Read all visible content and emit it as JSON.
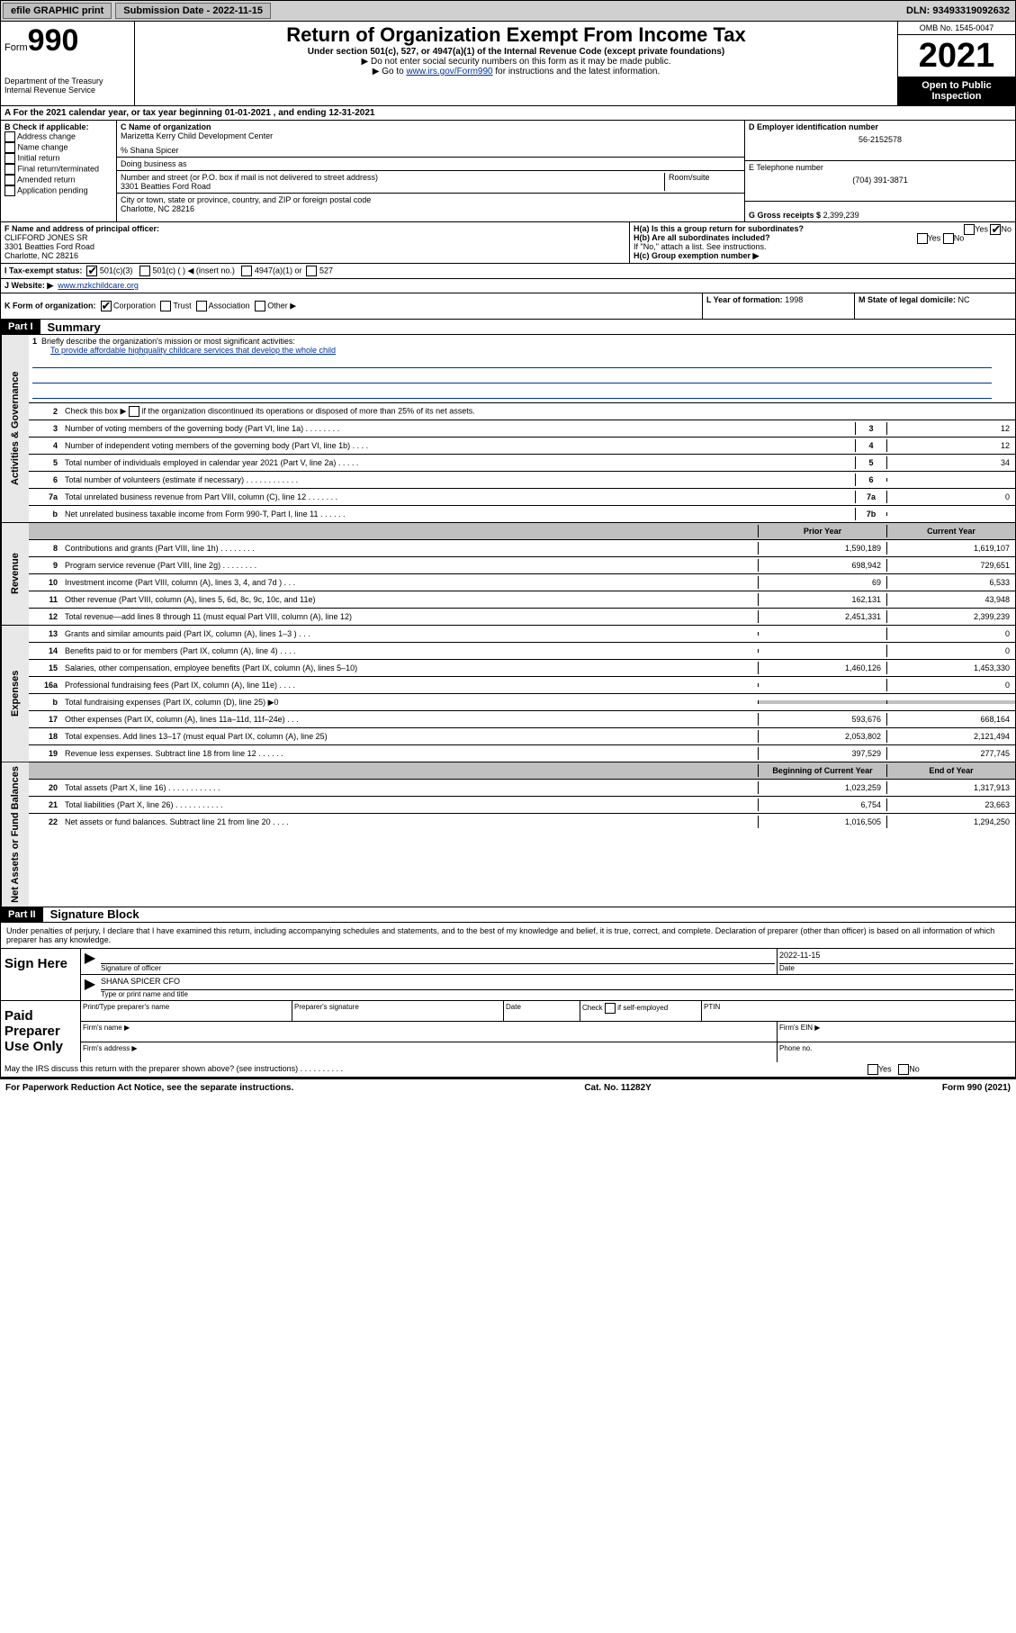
{
  "topbar": {
    "efile": "efile GRAPHIC print",
    "sub_label": "Submission Date - 2022-11-15",
    "dln": "DLN: 93493319092632"
  },
  "header": {
    "form_label": "Form",
    "form_num": "990",
    "dept": "Department of the Treasury",
    "irs": "Internal Revenue Service",
    "title": "Return of Organization Exempt From Income Tax",
    "sub1": "Under section 501(c), 527, or 4947(a)(1) of the Internal Revenue Code (except private foundations)",
    "sub2": "▶ Do not enter social security numbers on this form as it may be made public.",
    "sub3_pre": "▶ Go to ",
    "sub3_link": "www.irs.gov/Form990",
    "sub3_post": " for instructions and the latest information.",
    "omb": "OMB No. 1545-0047",
    "year": "2021",
    "inspect": "Open to Public Inspection"
  },
  "period": {
    "a": "A For the 2021 calendar year, or tax year beginning 01-01-2021   , and ending 12-31-2021"
  },
  "box_b": {
    "title": "B Check if applicable:",
    "items": [
      "Address change",
      "Name change",
      "Initial return",
      "Final return/terminated",
      "Amended return",
      "Application pending"
    ]
  },
  "box_c": {
    "label": "C Name of organization",
    "org": "Marizetta Kerry Child Development Center",
    "care": "% Shana Spicer",
    "dba_label": "Doing business as",
    "street_label": "Number and street (or P.O. box if mail is not delivered to street address)",
    "room_label": "Room/suite",
    "street": "3301 Beatties Ford Road",
    "city_label": "City or town, state or province, country, and ZIP or foreign postal code",
    "city": "Charlotte, NC  28216"
  },
  "box_d": {
    "label": "D Employer identification number",
    "ein": "56-2152578"
  },
  "box_e": {
    "label": "E Telephone number",
    "phone": "(704) 391-3871"
  },
  "box_g": {
    "label": "G Gross receipts $",
    "amount": "2,399,239"
  },
  "box_f": {
    "label": "F Name and address of principal officer:",
    "name": "CLIFFORD JONES SR",
    "addr1": "3301 Beatties Ford Road",
    "addr2": "Charlotte, NC  28216"
  },
  "box_h": {
    "ha": "H(a)  Is this a group return for subordinates?",
    "hb": "H(b)  Are all subordinates included?",
    "hb_note": "If \"No,\" attach a list. See instructions.",
    "hc": "H(c)  Group exemption number ▶",
    "yes": "Yes",
    "no": "No"
  },
  "box_i": {
    "label": "I   Tax-exempt status:",
    "c3": "501(c)(3)",
    "c": "501(c) (  ) ◀ (insert no.)",
    "a1": "4947(a)(1) or",
    "s527": "527"
  },
  "box_j": {
    "label": "J   Website: ▶",
    "url": "www.mzkchildcare.org"
  },
  "box_k": {
    "label": "K Form of organization:",
    "corp": "Corporation",
    "trust": "Trust",
    "assoc": "Association",
    "other": "Other ▶"
  },
  "box_l": {
    "label": "L Year of formation:",
    "val": "1998"
  },
  "box_m": {
    "label": "M State of legal domicile:",
    "val": "NC"
  },
  "part1": {
    "header": "Part I",
    "title": "Summary",
    "line1_label": "Briefly describe the organization's mission or most significant activities:",
    "mission": "To provide affordable highquality childcare services that develop the whole child",
    "line2": "Check this box ▶",
    "line2_post": " if the organization discontinued its operations or disposed of more than 25% of its net assets.",
    "lines_top": [
      {
        "n": "3",
        "l": "Number of voting members of the governing body (Part VI, line 1a)   .    .    .    .    .    .    .    .",
        "box": "3",
        "v": "12"
      },
      {
        "n": "4",
        "l": "Number of independent voting members of the governing body (Part VI, line 1b)   .    .    .    .",
        "box": "4",
        "v": "12"
      },
      {
        "n": "5",
        "l": "Total number of individuals employed in calendar year 2021 (Part V, line 2a)   .    .    .    .    .",
        "box": "5",
        "v": "34"
      },
      {
        "n": "6",
        "l": "Total number of volunteers (estimate if necessary)   .    .    .    .    .    .    .    .    .    .    .    .",
        "box": "6",
        "v": ""
      },
      {
        "n": "7a",
        "l": "Total unrelated business revenue from Part VIII, column (C), line 12   .    .    .    .    .    .    .",
        "box": "7a",
        "v": "0"
      },
      {
        "n": "b",
        "l": "Net unrelated business taxable income from Form 990-T, Part I, line 11   .    .    .    .    .    .",
        "box": "7b",
        "v": ""
      }
    ],
    "col_prior": "Prior Year",
    "col_current": "Current Year",
    "col_begin": "Beginning of Current Year",
    "col_end": "End of Year",
    "vert": {
      "gov": "Activities & Governance",
      "rev": "Revenue",
      "exp": "Expenses",
      "net": "Net Assets or Fund Balances"
    },
    "revenue": [
      {
        "n": "8",
        "l": "Contributions and grants (Part VIII, line 1h)   .    .    .    .    .    .    .    .",
        "p": "1,590,189",
        "c": "1,619,107"
      },
      {
        "n": "9",
        "l": "Program service revenue (Part VIII, line 2g)   .    .    .    .    .    .    .    .",
        "p": "698,942",
        "c": "729,651"
      },
      {
        "n": "10",
        "l": "Investment income (Part VIII, column (A), lines 3, 4, and 7d )   .    .    .",
        "p": "69",
        "c": "6,533"
      },
      {
        "n": "11",
        "l": "Other revenue (Part VIII, column (A), lines 5, 6d, 8c, 9c, 10c, and 11e)",
        "p": "162,131",
        "c": "43,948"
      },
      {
        "n": "12",
        "l": "Total revenue—add lines 8 through 11 (must equal Part VIII, column (A), line 12)",
        "p": "2,451,331",
        "c": "2,399,239"
      }
    ],
    "expenses": [
      {
        "n": "13",
        "l": "Grants and similar amounts paid (Part IX, column (A), lines 1–3 )   .    .    .",
        "p": "",
        "c": "0"
      },
      {
        "n": "14",
        "l": "Benefits paid to or for members (Part IX, column (A), line 4)   .    .    .    .",
        "p": "",
        "c": "0"
      },
      {
        "n": "15",
        "l": "Salaries, other compensation, employee benefits (Part IX, column (A), lines 5–10)",
        "p": "1,460,126",
        "c": "1,453,330"
      },
      {
        "n": "16a",
        "l": "Professional fundraising fees (Part IX, column (A), line 11e)   .    .    .    .",
        "p": "",
        "c": "0"
      },
      {
        "n": "b",
        "l": "Total fundraising expenses (Part IX, column (D), line 25) ▶0",
        "p": "grey",
        "c": "grey"
      },
      {
        "n": "17",
        "l": "Other expenses (Part IX, column (A), lines 11a–11d, 11f–24e)   .    .    .",
        "p": "593,676",
        "c": "668,164"
      },
      {
        "n": "18",
        "l": "Total expenses. Add lines 13–17 (must equal Part IX, column (A), line 25)",
        "p": "2,053,802",
        "c": "2,121,494"
      },
      {
        "n": "19",
        "l": "Revenue less expenses. Subtract line 18 from line 12   .    .    .    .    .    .",
        "p": "397,529",
        "c": "277,745"
      }
    ],
    "netassets": [
      {
        "n": "20",
        "l": "Total assets (Part X, line 16)   .    .    .    .    .    .    .    .    .    .    .    .",
        "p": "1,023,259",
        "c": "1,317,913"
      },
      {
        "n": "21",
        "l": "Total liabilities (Part X, line 26)   .    .    .    .    .    .    .    .    .    .    .",
        "p": "6,754",
        "c": "23,663"
      },
      {
        "n": "22",
        "l": "Net assets or fund balances. Subtract line 21 from line 20   .    .    .    .",
        "p": "1,016,505",
        "c": "1,294,250"
      }
    ]
  },
  "part2": {
    "header": "Part II",
    "title": "Signature Block",
    "intro": "Under penalties of perjury, I declare that I have examined this return, including accompanying schedules and statements, and to the best of my knowledge and belief, it is true, correct, and complete. Declaration of preparer (other than officer) is based on all information of which preparer has any knowledge.",
    "sign_here": "Sign Here",
    "sig_officer": "Signature of officer",
    "sig_date": "2022-11-15",
    "date_label": "Date",
    "officer_name": "SHANA SPICER CFO",
    "type_label": "Type or print name and title",
    "paid": "Paid Preparer Use Only",
    "prep_name": "Print/Type preparer's name",
    "prep_sig": "Preparer's signature",
    "check_self": "Check",
    "self": "if self-employed",
    "ptin": "PTIN",
    "firm_name": "Firm's name    ▶",
    "firm_ein": "Firm's EIN ▶",
    "firm_addr": "Firm's address ▶",
    "phone": "Phone no.",
    "may_irs": "May the IRS discuss this return with the preparer shown above? (see instructions)   .    .    .    .    .    .    .    .    .    .",
    "yes": "Yes",
    "no": "No"
  },
  "footer": {
    "left": "For Paperwork Reduction Act Notice, see the separate instructions.",
    "mid": "Cat. No. 11282Y",
    "right": "Form 990 (2021)"
  }
}
